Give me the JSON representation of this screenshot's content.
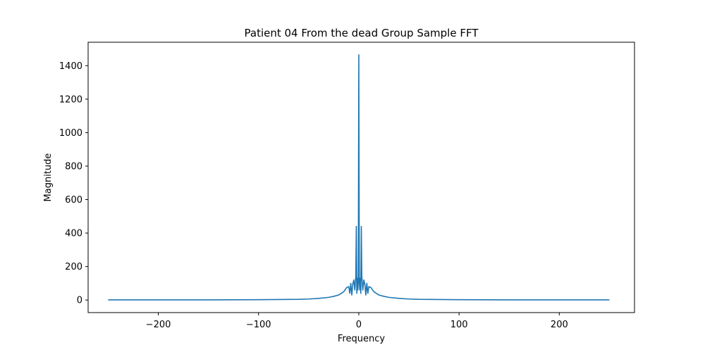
{
  "chart_data": {
    "type": "line",
    "title": "Patient 04 From the dead Group Sample FFT",
    "xlabel": "Frequency",
    "ylabel": "Magnitude",
    "xlim": [
      -270,
      275
    ],
    "ylim": [
      -75,
      1540
    ],
    "x_ticks": [
      -200,
      -100,
      0,
      100,
      200
    ],
    "x_tick_labels": [
      "−200",
      "−100",
      "0",
      "100",
      "200"
    ],
    "y_ticks": [
      0,
      200,
      400,
      600,
      800,
      1000,
      1200,
      1400
    ],
    "y_tick_labels": [
      "0",
      "200",
      "400",
      "600",
      "800",
      "1000",
      "1200",
      "1400"
    ],
    "grid": false,
    "line_color": "#1f77b4",
    "series": [
      {
        "x": [
          -250,
          -200,
          -150,
          -100,
          -80,
          -60,
          -50,
          -40,
          -30,
          -25,
          -20,
          -15,
          -12,
          -10,
          -9,
          -8,
          -7,
          -6,
          -5,
          -4,
          -3,
          -2.5,
          -2,
          -1.5,
          -1,
          -0.5,
          0,
          0.5,
          1,
          1.5,
          2,
          2.5,
          3,
          4,
          5,
          6,
          7,
          8,
          9,
          10,
          12,
          15,
          20,
          25,
          30,
          40,
          50,
          60,
          80,
          100,
          150,
          200,
          250
        ],
        "y": [
          1,
          1,
          1,
          2,
          3,
          4,
          6,
          10,
          16,
          22,
          30,
          50,
          75,
          80,
          40,
          100,
          30,
          95,
          120,
          60,
          140,
          440,
          40,
          130,
          60,
          110,
          1465,
          110,
          60,
          130,
          40,
          440,
          140,
          60,
          120,
          95,
          30,
          100,
          40,
          80,
          75,
          50,
          30,
          22,
          16,
          10,
          6,
          4,
          3,
          2,
          1,
          1,
          1
        ]
      }
    ]
  }
}
